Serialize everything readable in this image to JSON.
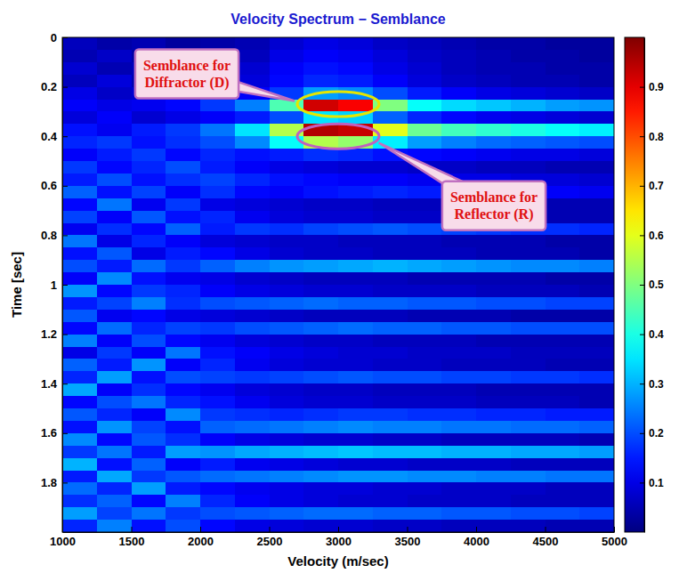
{
  "chart_data": {
    "type": "heatmap",
    "title": "Velocity Spectrum − Semblance",
    "x_label": "Velocity (m/sec)",
    "y_label": "Time [sec]",
    "xlim": [
      1000,
      5000
    ],
    "ylim": [
      0,
      2
    ],
    "xticks": [
      1000,
      1500,
      2000,
      2500,
      3000,
      3500,
      4000,
      4500,
      5000
    ],
    "yticks": [
      0,
      0.2,
      0.4,
      0.6,
      0.8,
      1,
      1.2,
      1.4,
      1.6,
      1.8
    ],
    "x_edges": [
      1000,
      1250,
      1500,
      1750,
      2000,
      2250,
      2500,
      2750,
      3000,
      3250,
      3500,
      3750,
      4000,
      4250,
      4500,
      4750,
      5000
    ],
    "y_edges": [
      0,
      0.05,
      0.1,
      0.15,
      0.2,
      0.25,
      0.3,
      0.35,
      0.4,
      0.45,
      0.5,
      0.55,
      0.6,
      0.65,
      0.7,
      0.75,
      0.8,
      0.85,
      0.9,
      0.95,
      1,
      1.05,
      1.1,
      1.15,
      1.2,
      1.25,
      1.3,
      1.35,
      1.4,
      1.45,
      1.5,
      1.55,
      1.6,
      1.65,
      1.7,
      1.75,
      1.8,
      1.85,
      1.9,
      1.95,
      2
    ],
    "z": [
      [
        0.06,
        0.04,
        0.05,
        0.03,
        0.04,
        0.05,
        0.08,
        0.1,
        0.09,
        0.07,
        0.06,
        0.05,
        0.04,
        0.04,
        0.03,
        0.03
      ],
      [
        0.05,
        0.07,
        0.04,
        0.06,
        0.05,
        0.06,
        0.1,
        0.12,
        0.11,
        0.09,
        0.07,
        0.06,
        0.05,
        0.04,
        0.04,
        0.03
      ],
      [
        0.08,
        0.05,
        0.06,
        0.04,
        0.07,
        0.08,
        0.12,
        0.14,
        0.13,
        0.1,
        0.08,
        0.06,
        0.05,
        0.05,
        0.04,
        0.04
      ],
      [
        0.06,
        0.09,
        0.05,
        0.07,
        0.06,
        0.09,
        0.13,
        0.16,
        0.15,
        0.12,
        0.09,
        0.07,
        0.06,
        0.05,
        0.05,
        0.04
      ],
      [
        0.1,
        0.07,
        0.08,
        0.06,
        0.09,
        0.12,
        0.18,
        0.28,
        0.26,
        0.2,
        0.15,
        0.12,
        0.1,
        0.09,
        0.08,
        0.07
      ],
      [
        0.12,
        0.1,
        0.11,
        0.13,
        0.18,
        0.25,
        0.45,
        0.92,
        0.88,
        0.5,
        0.38,
        0.34,
        0.32,
        0.3,
        0.28,
        0.27
      ],
      [
        0.09,
        0.12,
        0.08,
        0.1,
        0.12,
        0.15,
        0.2,
        0.35,
        0.33,
        0.22,
        0.16,
        0.13,
        0.11,
        0.1,
        0.09,
        0.08
      ],
      [
        0.14,
        0.11,
        0.15,
        0.18,
        0.24,
        0.35,
        0.55,
        0.95,
        0.93,
        0.6,
        0.48,
        0.44,
        0.42,
        0.4,
        0.38,
        0.36
      ],
      [
        0.16,
        0.18,
        0.14,
        0.17,
        0.2,
        0.26,
        0.38,
        0.55,
        0.52,
        0.36,
        0.28,
        0.25,
        0.23,
        0.22,
        0.21,
        0.2
      ],
      [
        0.12,
        0.15,
        0.18,
        0.13,
        0.16,
        0.14,
        0.15,
        0.17,
        0.16,
        0.14,
        0.13,
        0.12,
        0.11,
        0.1,
        0.1,
        0.09
      ],
      [
        0.18,
        0.13,
        0.16,
        0.2,
        0.15,
        0.12,
        0.1,
        0.09,
        0.08,
        0.08,
        0.07,
        0.07,
        0.06,
        0.06,
        0.05,
        0.05
      ],
      [
        0.15,
        0.2,
        0.14,
        0.17,
        0.19,
        0.16,
        0.14,
        0.13,
        0.12,
        0.12,
        0.11,
        0.1,
        0.1,
        0.09,
        0.09,
        0.08
      ],
      [
        0.22,
        0.14,
        0.19,
        0.12,
        0.17,
        0.13,
        0.12,
        0.14,
        0.15,
        0.16,
        0.15,
        0.14,
        0.13,
        0.12,
        0.12,
        0.11
      ],
      [
        0.13,
        0.24,
        0.11,
        0.18,
        0.1,
        0.09,
        0.08,
        0.07,
        0.07,
        0.06,
        0.06,
        0.06,
        0.05,
        0.05,
        0.05,
        0.05
      ],
      [
        0.19,
        0.12,
        0.21,
        0.14,
        0.16,
        0.11,
        0.09,
        0.08,
        0.08,
        0.07,
        0.07,
        0.06,
        0.06,
        0.06,
        0.05,
        0.05
      ],
      [
        0.11,
        0.17,
        0.13,
        0.22,
        0.15,
        0.18,
        0.17,
        0.19,
        0.2,
        0.21,
        0.2,
        0.19,
        0.18,
        0.17,
        0.17,
        0.16
      ],
      [
        0.24,
        0.1,
        0.16,
        0.12,
        0.09,
        0.08,
        0.07,
        0.07,
        0.06,
        0.06,
        0.06,
        0.05,
        0.05,
        0.05,
        0.04,
        0.04
      ],
      [
        0.14,
        0.21,
        0.1,
        0.15,
        0.13,
        0.1,
        0.08,
        0.07,
        0.07,
        0.06,
        0.06,
        0.06,
        0.05,
        0.05,
        0.05,
        0.04
      ],
      [
        0.2,
        0.15,
        0.23,
        0.18,
        0.22,
        0.25,
        0.27,
        0.28,
        0.29,
        0.3,
        0.29,
        0.28,
        0.27,
        0.26,
        0.26,
        0.25
      ],
      [
        0.12,
        0.26,
        0.14,
        0.11,
        0.1,
        0.08,
        0.07,
        0.06,
        0.06,
        0.06,
        0.05,
        0.05,
        0.05,
        0.05,
        0.04,
        0.04
      ],
      [
        0.27,
        0.13,
        0.18,
        0.16,
        0.12,
        0.1,
        0.09,
        0.08,
        0.08,
        0.07,
        0.07,
        0.07,
        0.06,
        0.06,
        0.06,
        0.05
      ],
      [
        0.15,
        0.19,
        0.25,
        0.17,
        0.2,
        0.21,
        0.22,
        0.23,
        0.22,
        0.22,
        0.21,
        0.21,
        0.2,
        0.2,
        0.19,
        0.19
      ],
      [
        0.21,
        0.11,
        0.13,
        0.1,
        0.09,
        0.08,
        0.07,
        0.06,
        0.06,
        0.06,
        0.05,
        0.05,
        0.05,
        0.04,
        0.04,
        0.04
      ],
      [
        0.13,
        0.23,
        0.16,
        0.19,
        0.18,
        0.2,
        0.21,
        0.22,
        0.23,
        0.22,
        0.22,
        0.21,
        0.21,
        0.2,
        0.2,
        0.2
      ],
      [
        0.25,
        0.12,
        0.2,
        0.13,
        0.11,
        0.09,
        0.08,
        0.07,
        0.07,
        0.06,
        0.06,
        0.06,
        0.05,
        0.05,
        0.05,
        0.05
      ],
      [
        0.1,
        0.18,
        0.12,
        0.24,
        0.14,
        0.12,
        0.1,
        0.09,
        0.08,
        0.08,
        0.07,
        0.07,
        0.07,
        0.06,
        0.06,
        0.06
      ],
      [
        0.22,
        0.15,
        0.27,
        0.12,
        0.16,
        0.11,
        0.09,
        0.08,
        0.08,
        0.07,
        0.07,
        0.06,
        0.06,
        0.06,
        0.05,
        0.05
      ],
      [
        0.16,
        0.28,
        0.14,
        0.2,
        0.19,
        0.18,
        0.19,
        0.2,
        0.21,
        0.2,
        0.2,
        0.19,
        0.19,
        0.18,
        0.18,
        0.17
      ],
      [
        0.29,
        0.12,
        0.17,
        0.13,
        0.11,
        0.09,
        0.08,
        0.07,
        0.07,
        0.06,
        0.06,
        0.06,
        0.05,
        0.05,
        0.05,
        0.05
      ],
      [
        0.13,
        0.2,
        0.24,
        0.16,
        0.14,
        0.11,
        0.09,
        0.08,
        0.08,
        0.07,
        0.07,
        0.07,
        0.06,
        0.06,
        0.06,
        0.05
      ],
      [
        0.21,
        0.16,
        0.12,
        0.26,
        0.18,
        0.17,
        0.16,
        0.17,
        0.18,
        0.18,
        0.17,
        0.17,
        0.16,
        0.16,
        0.15,
        0.15
      ],
      [
        0.14,
        0.27,
        0.19,
        0.14,
        0.22,
        0.23,
        0.24,
        0.25,
        0.26,
        0.25,
        0.25,
        0.24,
        0.24,
        0.23,
        0.23,
        0.22
      ],
      [
        0.26,
        0.13,
        0.21,
        0.17,
        0.12,
        0.1,
        0.09,
        0.08,
        0.08,
        0.07,
        0.07,
        0.06,
        0.06,
        0.06,
        0.06,
        0.05
      ],
      [
        0.18,
        0.24,
        0.15,
        0.28,
        0.27,
        0.29,
        0.3,
        0.31,
        0.32,
        0.31,
        0.31,
        0.3,
        0.3,
        0.29,
        0.29,
        0.28
      ],
      [
        0.3,
        0.14,
        0.22,
        0.12,
        0.15,
        0.11,
        0.1,
        0.09,
        0.08,
        0.08,
        0.07,
        0.07,
        0.07,
        0.06,
        0.06,
        0.06
      ],
      [
        0.15,
        0.29,
        0.18,
        0.21,
        0.23,
        0.24,
        0.25,
        0.26,
        0.27,
        0.27,
        0.26,
        0.26,
        0.25,
        0.25,
        0.24,
        0.24
      ],
      [
        0.23,
        0.16,
        0.28,
        0.15,
        0.13,
        0.11,
        0.1,
        0.09,
        0.09,
        0.08,
        0.08,
        0.07,
        0.07,
        0.07,
        0.06,
        0.06
      ],
      [
        0.17,
        0.22,
        0.13,
        0.25,
        0.16,
        0.12,
        0.1,
        0.09,
        0.08,
        0.08,
        0.07,
        0.07,
        0.07,
        0.06,
        0.06,
        0.06
      ],
      [
        0.28,
        0.19,
        0.24,
        0.18,
        0.2,
        0.21,
        0.22,
        0.23,
        0.23,
        0.22,
        0.22,
        0.21,
        0.21,
        0.2,
        0.2,
        0.19
      ],
      [
        0.16,
        0.25,
        0.14,
        0.2,
        0.13,
        0.1,
        0.09,
        0.08,
        0.08,
        0.07,
        0.07,
        0.06,
        0.06,
        0.06,
        0.05,
        0.05
      ]
    ],
    "colorbar_lim": [
      0,
      1
    ],
    "colorbar_ticks": [
      0.1,
      0.2,
      0.3,
      0.4,
      0.5,
      0.6,
      0.7,
      0.8,
      0.9
    ],
    "annotations": [
      {
        "text": [
          "Semblance for",
          "Diffractor (D)"
        ],
        "x": 3000,
        "y": 0.27,
        "color": "#e6e600"
      },
      {
        "text": [
          "Semblance for",
          "Reflector (R)"
        ],
        "x": 3000,
        "y": 0.4,
        "color": "#c060c0"
      }
    ]
  }
}
